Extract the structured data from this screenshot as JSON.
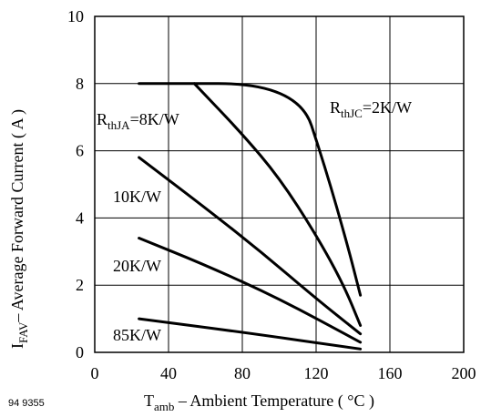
{
  "figure_id": "94 9355",
  "chart_data": {
    "type": "line",
    "title": "",
    "xlabel": {
      "main": "T",
      "sub": "amb",
      "rest": " – Ambient Temperature ( °C )"
    },
    "ylabel": {
      "main": "I",
      "sub": "FAV",
      "rest": "– Average Forward Current ( A )"
    },
    "xlim": [
      0,
      200
    ],
    "ylim": [
      0,
      10
    ],
    "xticks": [
      "0",
      "40",
      "80",
      "120",
      "160",
      "200"
    ],
    "yticks": [
      "0",
      "2",
      "4",
      "6",
      "8",
      "10"
    ],
    "grid": true,
    "series": [
      {
        "label_main": "R",
        "label_sub": "thJC",
        "label_rest": "=2K/W",
        "points": [
          [
            24,
            8.0
          ],
          [
            110,
            8.0
          ],
          [
            125,
            5.5
          ],
          [
            137,
            3.2
          ],
          [
            144,
            1.7
          ]
        ]
      },
      {
        "label_main": "R",
        "label_sub": "thJA",
        "label_rest": "=8K/W",
        "points": [
          [
            54,
            8.0
          ],
          [
            80,
            6.5
          ],
          [
            100,
            5.2
          ],
          [
            120,
            3.5
          ],
          [
            135,
            2.0
          ],
          [
            144,
            0.8
          ]
        ]
      },
      {
        "label_main": "",
        "label_sub": "",
        "label_rest": "10K/W",
        "points": [
          [
            24,
            5.8
          ],
          [
            60,
            4.3
          ],
          [
            90,
            3.0
          ],
          [
            120,
            1.6
          ],
          [
            144,
            0.55
          ]
        ]
      },
      {
        "label_main": "",
        "label_sub": "",
        "label_rest": "20K/W",
        "points": [
          [
            24,
            3.4
          ],
          [
            60,
            2.6
          ],
          [
            100,
            1.6
          ],
          [
            144,
            0.3
          ]
        ]
      },
      {
        "label_main": "",
        "label_sub": "",
        "label_rest": "85K/W",
        "points": [
          [
            24,
            1.0
          ],
          [
            80,
            0.6
          ],
          [
            144,
            0.1
          ]
        ]
      }
    ]
  }
}
